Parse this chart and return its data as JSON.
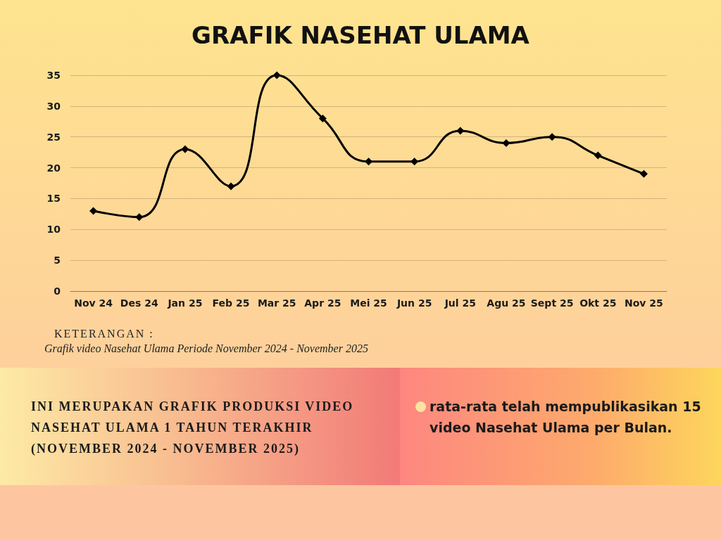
{
  "chart_data": {
    "type": "line",
    "title": "GRAFIK NASEHAT ULAMA",
    "categories": [
      "Nov 24",
      "Des 24",
      "Jan 25",
      "Feb 25",
      "Mar 25",
      "Apr 25",
      "Mei 25",
      "Jun 25",
      "Jul 25",
      "Agu 25",
      "Sept 25",
      "Okt 25",
      "Nov 25"
    ],
    "series": [
      {
        "color": "#000000",
        "values": [
          13,
          12,
          23,
          17,
          35,
          28,
          21,
          21,
          26,
          24,
          25,
          22,
          19
        ]
      }
    ],
    "ylim": [
      0,
      35
    ],
    "yticks": [
      0,
      5,
      10,
      15,
      20,
      25,
      30,
      35
    ],
    "grid": "y",
    "marker": "diamond",
    "line_style": "solid",
    "annotations": [
      "KETERANGAN :",
      "Grafik video Nasehat Ulama Periode November 2024 - November 2025",
      "INI MERUPAKAN GRAFIK PRODUKSI VIDEO NASEHAT ULAMA 1 TAHUN TERAKHIR (NOVEMBER 2024 - NOVEMBER 2025)",
      "rata-rata telah mempublikasikan 15 video Nasehat Ulama per Bulan."
    ]
  }
}
